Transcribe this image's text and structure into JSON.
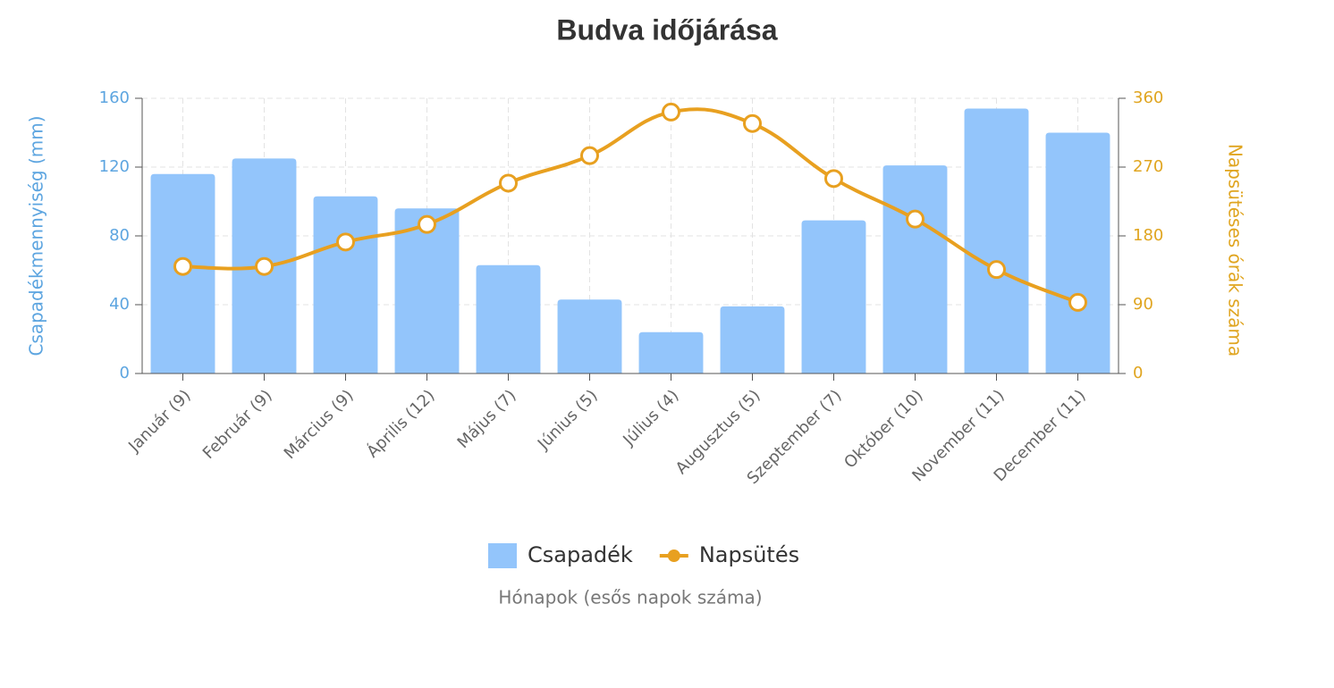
{
  "chart_data": {
    "type": "bar-line",
    "title": "Budva időjárása",
    "x_label": "Hónapok (esős napok száma)",
    "y_label": "Csapadékmennyiség (mm)",
    "y2_label": "Napsütéses órák száma",
    "categories": [
      "Január (9)",
      "Február (9)",
      "Március (9)",
      "Április (12)",
      "Május (7)",
      "Június (5)",
      "Július (4)",
      "Augusztus (5)",
      "Szeptember (7)",
      "Október (10)",
      "November (11)",
      "December (11)"
    ],
    "series": [
      {
        "name": "Csapadék",
        "type": "bar",
        "color": "#93c5fb",
        "values": [
          116,
          125,
          103,
          96,
          63,
          43,
          24,
          39,
          89,
          121,
          154,
          140
        ]
      },
      {
        "name": "Napsütés",
        "type": "line",
        "axis": "y2",
        "color": "#e8a020",
        "values": [
          140,
          140,
          172,
          195,
          249,
          285,
          342,
          327,
          255,
          202,
          136,
          93
        ]
      }
    ],
    "ylim": [
      0,
      160
    ],
    "yticks": [
      0,
      40,
      80,
      120,
      160
    ],
    "y2lim": [
      0,
      360
    ],
    "y2ticks": [
      0,
      90,
      180,
      270,
      360
    ],
    "grid": true,
    "legend": "bottom"
  }
}
